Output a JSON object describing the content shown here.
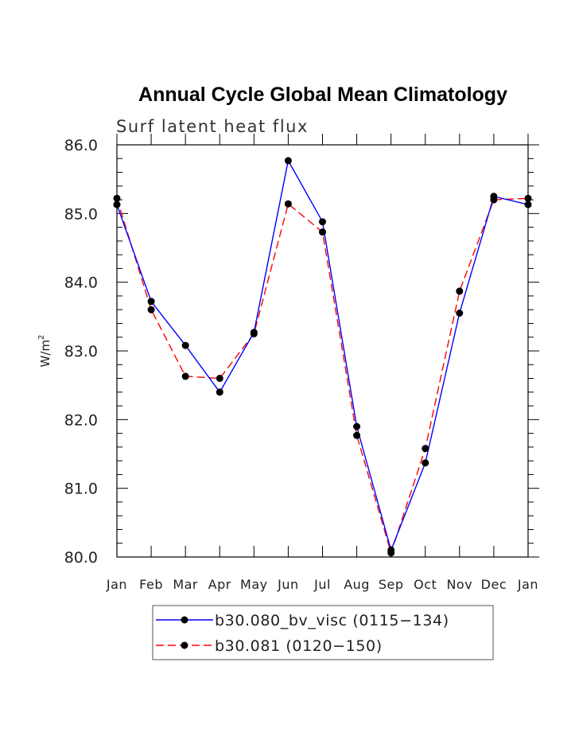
{
  "chart_data": {
    "type": "line",
    "title": "Annual Cycle Global Mean Climatology",
    "subtitle": "Surf latent heat flux",
    "xlabel": "",
    "ylabel": "W/m",
    "ylabel_superscript": "2",
    "ylim": [
      80.0,
      86.0
    ],
    "yticks": [
      "80.0",
      "81.0",
      "82.0",
      "83.0",
      "84.0",
      "85.0",
      "86.0"
    ],
    "categories": [
      "Jan",
      "Feb",
      "Mar",
      "Apr",
      "May",
      "Jun",
      "Jul",
      "Aug",
      "Sep",
      "Oct",
      "Nov",
      "Dec",
      "Jan"
    ],
    "series": [
      {
        "name": "b30.080_bv_visc (0115-134)",
        "color": "#0000ff",
        "line_style": "solid",
        "values": [
          85.13,
          83.72,
          83.08,
          82.4,
          83.27,
          85.77,
          84.88,
          81.9,
          80.1,
          81.37,
          83.55,
          85.25,
          85.13
        ]
      },
      {
        "name": "b30.081 (0120-150)",
        "color": "#ff0000",
        "line_style": "dashed",
        "values": [
          85.22,
          83.6,
          82.63,
          82.6,
          83.25,
          85.14,
          84.73,
          81.77,
          80.06,
          81.58,
          83.87,
          85.2,
          85.22
        ]
      }
    ],
    "legend": {
      "entries": [
        "b30.080_bv_visc (0115−134)",
        "b30.081 (0120−150)"
      ],
      "placement": "bottom"
    }
  }
}
